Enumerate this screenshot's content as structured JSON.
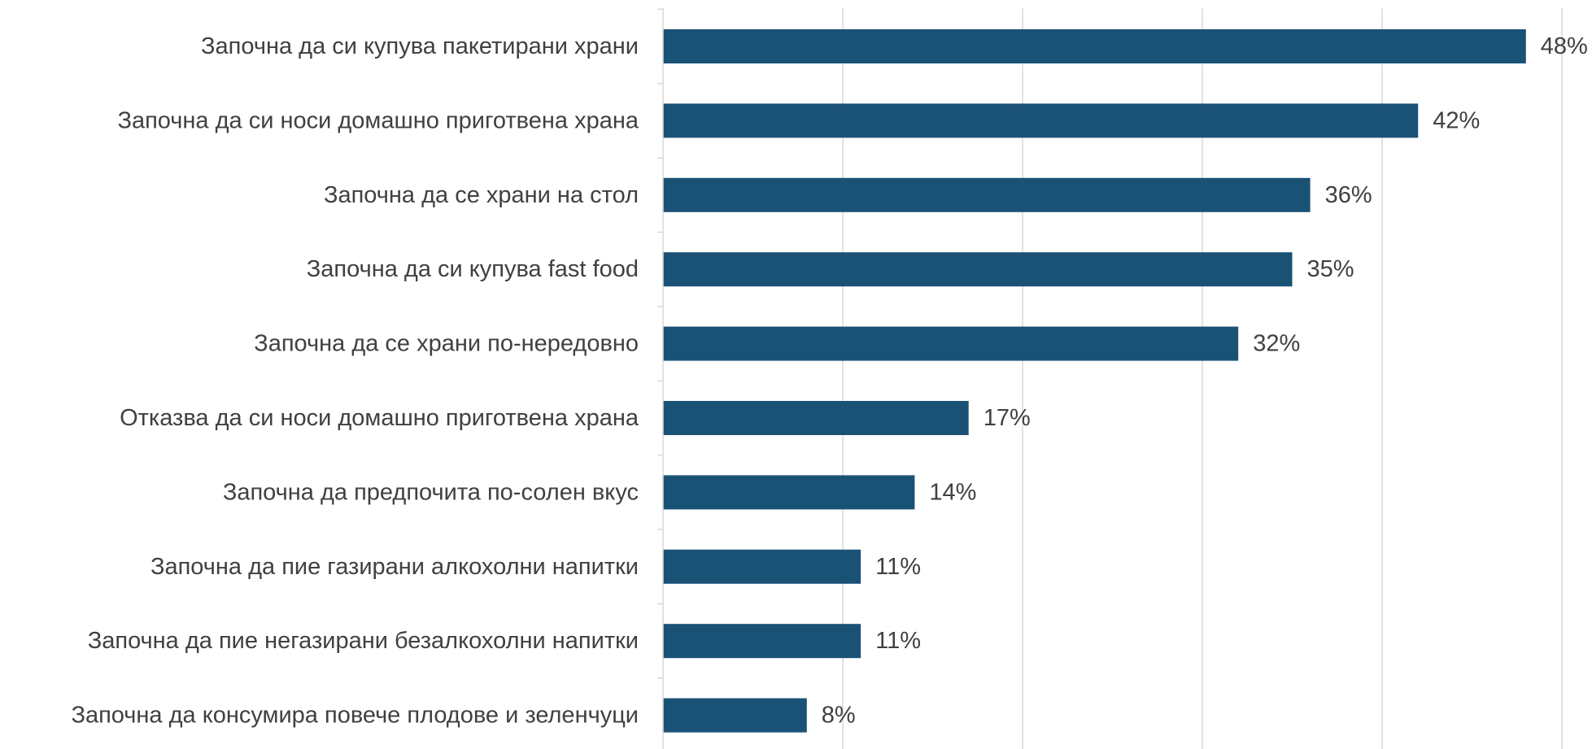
{
  "chart_data": {
    "type": "bar",
    "orientation": "horizontal",
    "title": "",
    "xlabel": "",
    "ylabel": "",
    "xlim": [
      0,
      50
    ],
    "grid": true,
    "legend": "none",
    "bar_color": "#1a5276",
    "categories": [
      "Започна да си купува пакетирани храни",
      "Започна да си носи домашно приготвена храна",
      "Започна да се храни на стол",
      "Започна да си купува fast food",
      "Започна да се храни по-нередовно",
      "Отказва да си носи домашно приготвена храна",
      "Започна да предпочита по-солен вкус",
      "Започна да пие газирани алкохолни напитки",
      "Започна да пие негазирани безалкохолни напитки",
      "Започна да консумира повече плодове и зеленчуци"
    ],
    "values": [
      48,
      42,
      36,
      35,
      32,
      17,
      14,
      11,
      11,
      8
    ],
    "value_labels": [
      "48%",
      "42%",
      "36%",
      "35%",
      "32%",
      "17%",
      "14%",
      "11%",
      "11%",
      "8%"
    ]
  }
}
